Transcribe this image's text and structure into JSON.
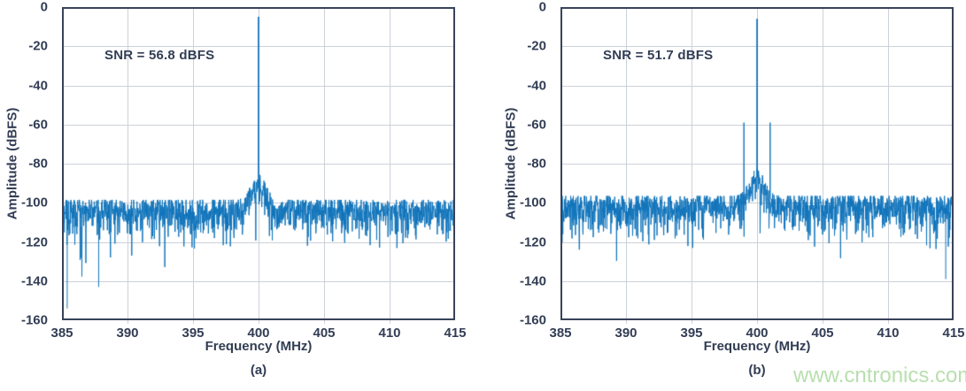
{
  "watermark": "www.cntronics.com",
  "colors": {
    "trace": "#0f73ba",
    "axis_text": "#323d54",
    "grid": "#ccd1d9",
    "frame": "#39435a",
    "watermark": "#b8dfae"
  },
  "chart_data": [
    {
      "type": "line",
      "caption": "(a)",
      "annotation": "SNR = 56.8 dBFS",
      "snr_dbfs": 56.8,
      "xlabel": "Frequency (MHz)",
      "ylabel": "Amplitude (dBFS)",
      "xlim": [
        385,
        415
      ],
      "ylim": [
        -160,
        0
      ],
      "xticks": [
        385,
        390,
        395,
        400,
        405,
        410,
        415
      ],
      "yticks": [
        0,
        -20,
        -40,
        -60,
        -80,
        -100,
        -120,
        -140,
        -160
      ],
      "grid": true,
      "legend": false,
      "series_color": "#0f73ba",
      "signal_peak": {
        "frequency_mhz": 400,
        "amplitude_dbfs": -5
      },
      "spurs": [],
      "noise_floor_top_dbfs": -103,
      "noise_floor_mean_dbfs": -112,
      "skirt": {
        "center_mhz": 400,
        "peak_dbfs": -90,
        "sigma_mhz": 0.55
      },
      "deep_dips": [
        {
          "frequency_mhz": 385.4,
          "amplitude_dbfs": -154
        },
        {
          "frequency_mhz": 387.8,
          "amplitude_dbfs": -143
        }
      ]
    },
    {
      "type": "line",
      "caption": "(b)",
      "annotation": "SNR = 51.7 dBFS",
      "snr_dbfs": 51.7,
      "xlabel": "Frequency (MHz)",
      "ylabel": "Amplitude (dBFS)",
      "xlim": [
        385,
        415
      ],
      "ylim": [
        -160,
        0
      ],
      "xticks": [
        385,
        390,
        395,
        400,
        405,
        410,
        415
      ],
      "yticks": [
        0,
        -20,
        -40,
        -60,
        -80,
        -100,
        -120,
        -140,
        -160
      ],
      "grid": true,
      "legend": false,
      "series_color": "#0f73ba",
      "signal_peak": {
        "frequency_mhz": 400,
        "amplitude_dbfs": -6
      },
      "spurs": [
        {
          "frequency_mhz": 399.0,
          "amplitude_dbfs": -59
        },
        {
          "frequency_mhz": 401.0,
          "amplitude_dbfs": -59
        }
      ],
      "noise_floor_top_dbfs": -101,
      "noise_floor_mean_dbfs": -110,
      "skirt": {
        "center_mhz": 400,
        "peak_dbfs": -87,
        "sigma_mhz": 0.55
      },
      "deep_dips": [
        {
          "frequency_mhz": 414.4,
          "amplitude_dbfs": -139
        }
      ]
    }
  ]
}
